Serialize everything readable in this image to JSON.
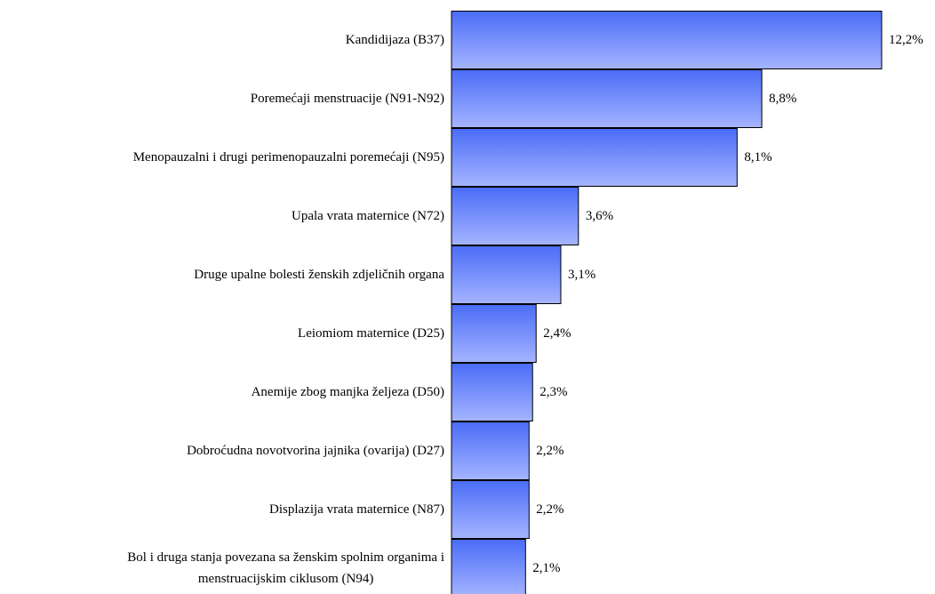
{
  "chart_data": {
    "type": "barh",
    "categories": [
      "Kandidijaza (B37)",
      "Poremećaji menstruacije (N91-N92)",
      "Menopauzalni i drugi perimenopauzalni poremećaji (N95)",
      "Upala vrata maternice (N72)",
      "Druge upalne bolesti ženskih zdjeličnih organa",
      "Leiomiom maternice (D25)",
      "Anemije zbog manjka željeza (D50)",
      "Dobroćudna novotvorina jajnika (ovarija) (D27)",
      "Displazija vrata maternice (N87)",
      "Bol i druga stanja povezana sa ženskim spolnim organima i\nmenstruacijskim ciklusom (N94)"
    ],
    "values": [
      12.2,
      8.8,
      8.1,
      3.6,
      3.1,
      2.4,
      2.3,
      2.2,
      2.2,
      2.1
    ],
    "value_labels": [
      "12,2%",
      "8,8%",
      "8,1%",
      "3,6%",
      "3,1%",
      "2,4%",
      "2,3%",
      "2,2%",
      "2,2%",
      "2,1%"
    ],
    "color": "#4a6cf7"
  }
}
